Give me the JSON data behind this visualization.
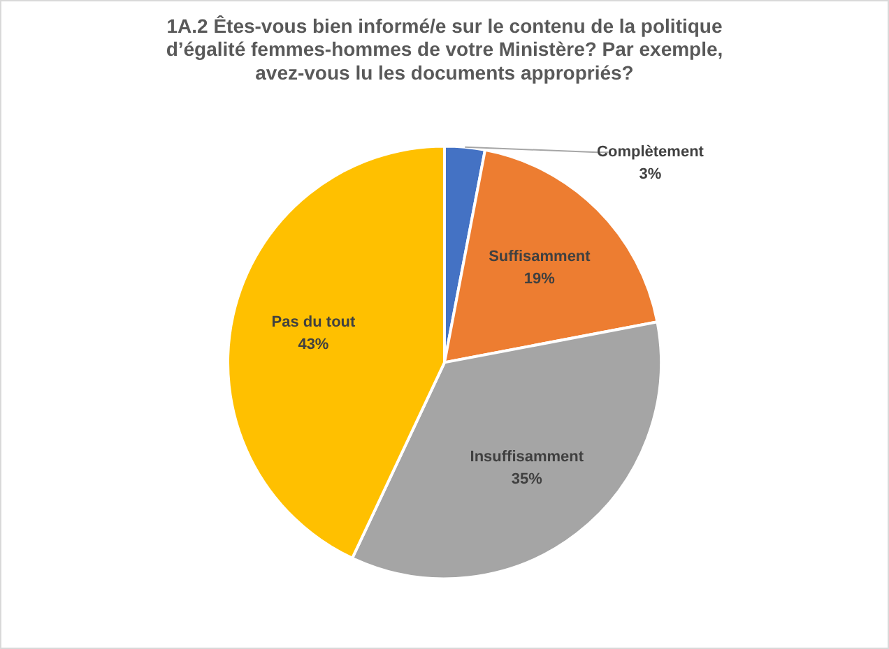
{
  "chart_data": {
    "type": "pie",
    "title": "1A.2 Êtes-vous bien informé/e sur le contenu de la politique d’égalité femmes-hommes de votre Ministère? Par exemple, avez-vous lu les documents appropriés?",
    "categories": [
      "Complètement",
      "Suffisamment",
      "Insuffisamment",
      "Pas du tout"
    ],
    "values": [
      3,
      19,
      35,
      43
    ],
    "colors": [
      "#4472c4",
      "#ed7d31",
      "#a5a5a5",
      "#ffc000"
    ],
    "value_labels": [
      "3%",
      "19%",
      "35%",
      "43%"
    ],
    "legend": false
  }
}
